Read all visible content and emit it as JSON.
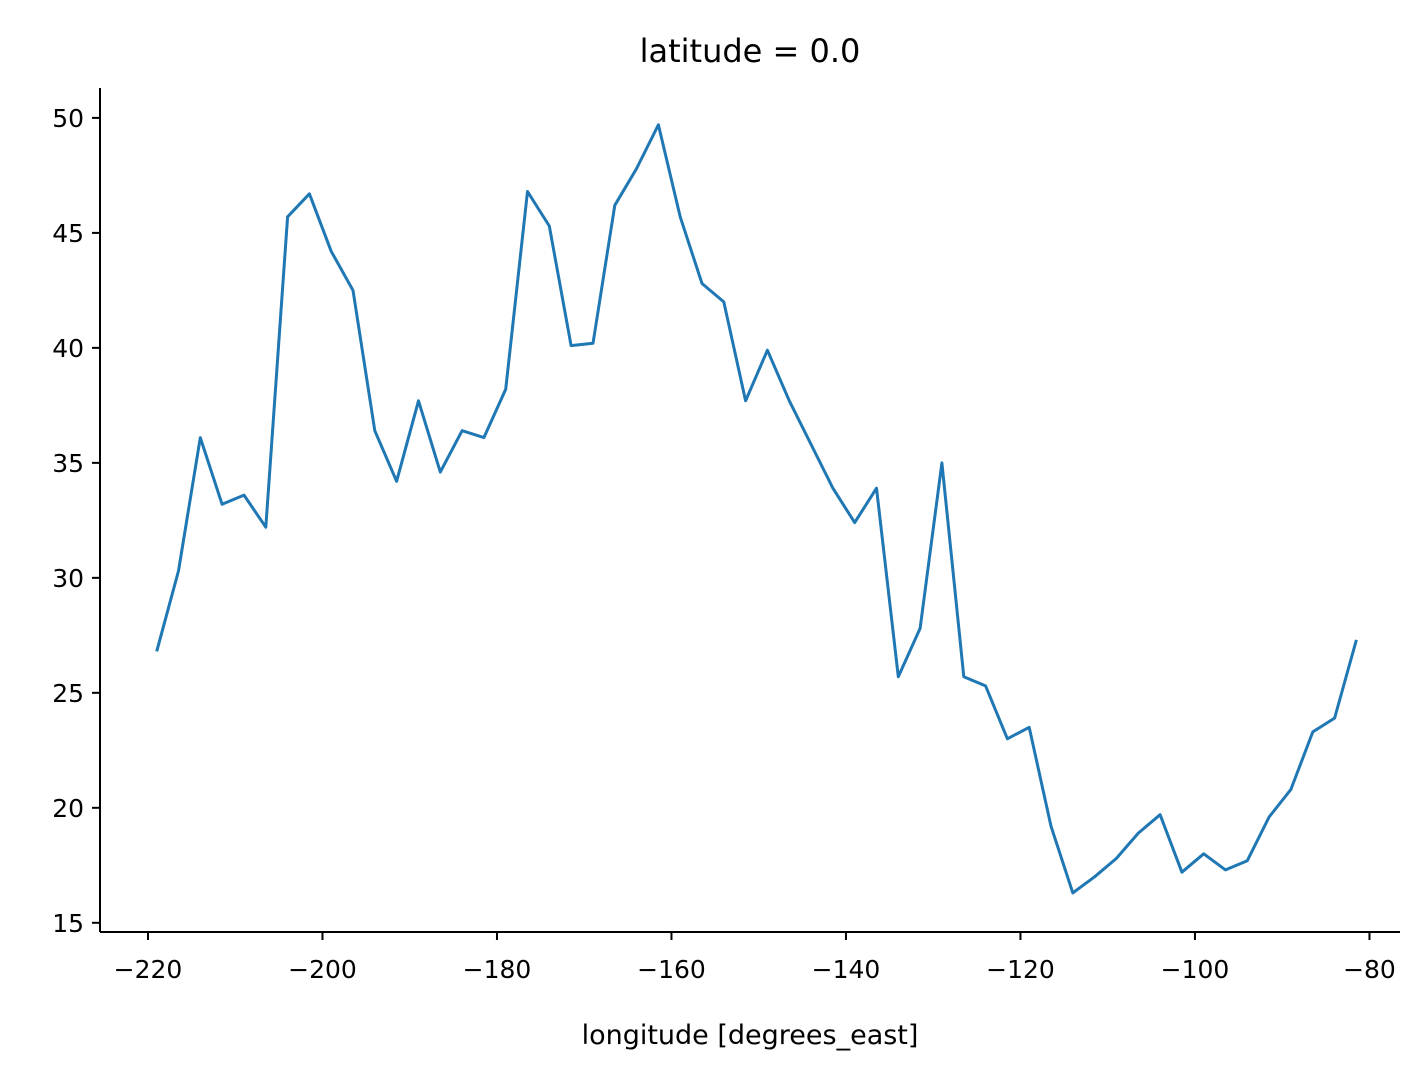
{
  "chart_data": {
    "type": "line",
    "title": "latitude = 0.0",
    "xlabel": "longitude [degrees_east]",
    "ylabel": "",
    "xlim": [
      -225.5,
      -76.5
    ],
    "ylim": [
      14.6,
      51.3
    ],
    "xticks": [
      -220,
      -200,
      -180,
      -160,
      -140,
      -120,
      -100,
      -80
    ],
    "yticks": [
      15,
      20,
      25,
      30,
      35,
      40,
      45,
      50
    ],
    "xtick_labels": [
      "−220",
      "−200",
      "−180",
      "−160",
      "−140",
      "−120",
      "−100",
      "−80"
    ],
    "ytick_labels": [
      "15",
      "20",
      "25",
      "30",
      "35",
      "40",
      "45",
      "50"
    ],
    "grid": false,
    "line_color": "#1f77b4",
    "series": [
      {
        "x": [
          -219.0,
          -216.5,
          -214.0,
          -211.5,
          -209.0,
          -206.5,
          -204.0,
          -201.5,
          -199.0,
          -196.5,
          -194.0,
          -191.5,
          -189.0,
          -186.5,
          -184.0,
          -181.5,
          -179.0,
          -176.5,
          -174.0,
          -171.5,
          -169.0,
          -166.5,
          -164.0,
          -161.5,
          -159.0,
          -156.5,
          -154.0,
          -151.5,
          -149.0,
          -146.5,
          -144.0,
          -141.5,
          -139.0,
          -136.5,
          -134.0,
          -131.5,
          -129.0,
          -126.5,
          -124.0,
          -121.5,
          -119.0,
          -116.5,
          -114.0,
          -111.5,
          -109.0,
          -106.5,
          -104.0,
          -101.5,
          -99.0,
          -96.5,
          -94.0,
          -91.5,
          -89.0,
          -86.5,
          -84.0,
          -81.5
        ],
        "values": [
          26.8,
          30.3,
          36.1,
          33.2,
          33.6,
          32.2,
          45.7,
          46.7,
          44.2,
          42.5,
          36.4,
          34.2,
          37.7,
          34.6,
          36.4,
          36.1,
          38.2,
          46.8,
          45.3,
          40.1,
          40.2,
          46.2,
          47.8,
          49.7,
          45.7,
          42.8,
          42.0,
          37.7,
          39.9,
          37.7,
          35.8,
          33.9,
          32.4,
          33.9,
          25.7,
          27.8,
          35.0,
          25.7,
          25.3,
          23.0,
          23.5,
          19.2,
          16.3,
          17.0,
          17.8,
          18.9,
          19.7,
          17.2,
          18.0,
          17.3,
          17.7,
          19.6,
          20.8,
          23.3,
          23.9,
          27.3
        ]
      }
    ]
  }
}
